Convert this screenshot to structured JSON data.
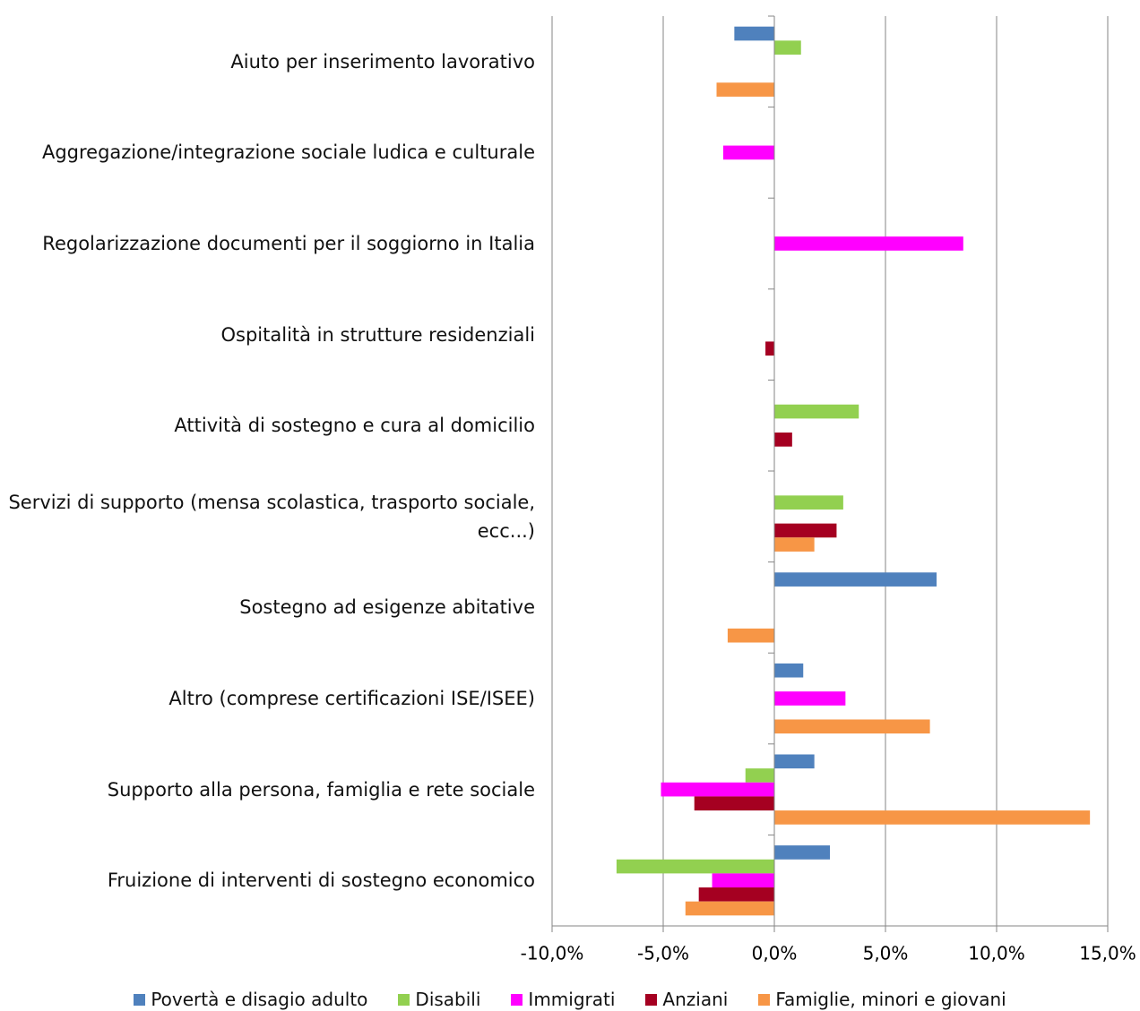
{
  "chart_data": {
    "type": "hbar",
    "categories": [
      "Aiuto per inserimento lavorativo",
      "Aggregazione/integrazione sociale ludica e culturale",
      "Regolarizzazione documenti per il soggiorno in Italia",
      "Ospitalità in strutture residenziali",
      "Attività di sostegno e cura al domicilio",
      "Servizi di supporto (mensa scolastica, trasporto sociale, ecc...)",
      "Sostegno ad esigenze abitative",
      "Altro (comprese certificazioni ISE/ISEE)",
      "Supporto alla persona, famiglia e rete sociale",
      "Fruizione di interventi di sostegno economico"
    ],
    "series": [
      {
        "name": "Povertà e disagio adulto",
        "color": "#4f81bd",
        "values": [
          -1.8,
          0,
          0,
          0,
          0,
          0,
          7.3,
          1.3,
          1.8,
          2.5
        ]
      },
      {
        "name": "Disabili",
        "color": "#92d050",
        "values": [
          1.2,
          0,
          0,
          0,
          3.8,
          3.1,
          0,
          0,
          -1.3,
          -7.1
        ]
      },
      {
        "name": "Immigrati",
        "color": "#ff00ff",
        "values": [
          0,
          -2.3,
          8.5,
          0,
          0,
          0,
          0,
          3.2,
          -5.1,
          -2.8
        ]
      },
      {
        "name": "Anziani",
        "color": "#a50021",
        "values": [
          0,
          0,
          0,
          -0.4,
          0.8,
          2.8,
          0,
          0,
          -3.6,
          -3.4
        ]
      },
      {
        "name": "Famiglie, minori e giovani",
        "color": "#f79646",
        "values": [
          -2.6,
          0,
          0,
          0,
          0,
          1.8,
          -2.1,
          7.0,
          14.2,
          -4.0
        ]
      }
    ],
    "xlim": [
      -10,
      15
    ],
    "xticks": [
      {
        "value": -10,
        "label": "-10,0%"
      },
      {
        "value": -5,
        "label": "-5,0%"
      },
      {
        "value": 0,
        "label": "0,0%"
      },
      {
        "value": 5,
        "label": "5,0%"
      },
      {
        "value": 10,
        "label": "10,0%"
      },
      {
        "value": 15,
        "label": "15,0%"
      }
    ],
    "grid": true,
    "legend": "bottom"
  }
}
